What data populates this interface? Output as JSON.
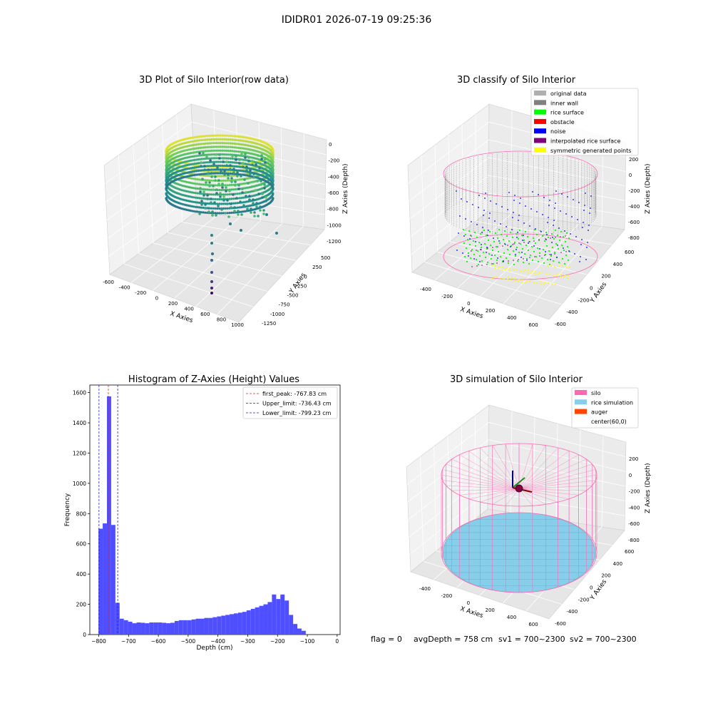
{
  "suptitle": "IDIDR01 2026-07-19 09:25:36",
  "footer": {
    "flag": "flag = 0",
    "avg_depth": "avgDepth = 758 cm",
    "sv1": "sv1 = 700~2300",
    "sv2": "sv2 = 700~2300"
  },
  "colors": {
    "histogram_bar": "#4f4fff",
    "peak_line": "#e02020",
    "limit_line": "#2020c0",
    "silo": "#ff69b4",
    "rice_simulation": "#87ceeb",
    "auger": "#ff4500",
    "inner_wall": "#808080",
    "rice_surface": "#00ff00",
    "obstacle": "#ff0000",
    "noise": "#0000ff",
    "interpolated": "#800080",
    "symmetric": "#ffff00",
    "original": "#b0b0b0"
  },
  "chart_data": [
    {
      "type": "scatter",
      "title": "3D Plot of Silo Interior(row data)",
      "xlabel": "X Axies",
      "ylabel": "Y Axies",
      "zlabel": "Z Axies (Depth)",
      "x_ticks": [
        "-600",
        "-400",
        "-200",
        "0",
        "200",
        "400",
        "600",
        "800",
        "1000"
      ],
      "y_ticks": [
        "500",
        "250",
        "0",
        "-250",
        "-500",
        "-750",
        "-1000",
        "-1250"
      ],
      "z_ticks": [
        "0",
        "-200",
        "-400",
        "-600",
        "-800",
        "-1000",
        "-1200"
      ],
      "colormap": "viridis"
    },
    {
      "type": "scatter",
      "title": "3D classify of Silo Interior",
      "xlabel": "X Axies",
      "ylabel": "Y Axies",
      "zlabel": "Z Axies (Depth)",
      "x_ticks": [
        "-400",
        "-200",
        "0",
        "200",
        "400",
        "600"
      ],
      "y_ticks": [
        "600",
        "400",
        "200",
        "0",
        "-200",
        "-400",
        "-600"
      ],
      "z_ticks": [
        "200",
        "0",
        "-200",
        "-400",
        "-600",
        "-800"
      ],
      "legend": [
        {
          "label": "original data",
          "color": "#b0b0b0"
        },
        {
          "label": "inner wall",
          "color": "#808080"
        },
        {
          "label": "rice surface",
          "color": "#00ff00"
        },
        {
          "label": "obstacle",
          "color": "#ff0000"
        },
        {
          "label": "noise",
          "color": "#0000ff"
        },
        {
          "label": "interpolated rice surface",
          "color": "#800080"
        },
        {
          "label": "symmetric generated points",
          "color": "#ffff00"
        }
      ]
    },
    {
      "type": "bar",
      "title": "Histogram of Z-Axies (Height) Values",
      "xlabel": "Depth (cm)",
      "ylabel": "Frequency",
      "xlim": [
        -830,
        10
      ],
      "ylim": [
        0,
        1650
      ],
      "x_ticks": [
        -800,
        -700,
        -600,
        -500,
        -400,
        -300,
        -200,
        -100,
        0
      ],
      "y_ticks": [
        0,
        200,
        400,
        600,
        800,
        1000,
        1200,
        1400,
        1600
      ],
      "bin_width": 14.2,
      "bin_start": -801,
      "values": [
        700,
        735,
        1575,
        725,
        210,
        105,
        95,
        85,
        75,
        80,
        78,
        75,
        80,
        80,
        80,
        78,
        75,
        78,
        90,
        95,
        95,
        95,
        100,
        105,
        105,
        110,
        110,
        115,
        120,
        125,
        130,
        135,
        140,
        145,
        150,
        160,
        170,
        180,
        190,
        200,
        215,
        265,
        235,
        265,
        225,
        130,
        70,
        40,
        25
      ],
      "vlines": [
        {
          "label": "first_peak: -767.83 cm",
          "x": -767.83,
          "color": "#e02020"
        },
        {
          "label": "Upper_limit: -736.43 cm",
          "x": -736.43,
          "color": "#2020c0"
        },
        {
          "label": "Lower_limit: -799.23 cm",
          "x": -799.23,
          "color": "#2020c0"
        }
      ]
    },
    {
      "type": "scatter",
      "title": "3D simulation of Silo Interior",
      "xlabel": "X Axies",
      "ylabel": "Y Axies",
      "zlabel": "Z Axies (Depth)",
      "x_ticks": [
        "-400",
        "-200",
        "0",
        "200",
        "400",
        "600"
      ],
      "y_ticks": [
        "600",
        "400",
        "200",
        "0",
        "-200",
        "-400",
        "-600"
      ],
      "z_ticks": [
        "200",
        "0",
        "-200",
        "-400",
        "-600",
        "-800"
      ],
      "legend": [
        {
          "label": "silo",
          "color": "#ff69b4"
        },
        {
          "label": "rice simulation",
          "color": "#87ceeb"
        },
        {
          "label": "auger",
          "color": "#ff4500"
        },
        {
          "label": "center(60,0)",
          "color": ""
        }
      ]
    }
  ]
}
